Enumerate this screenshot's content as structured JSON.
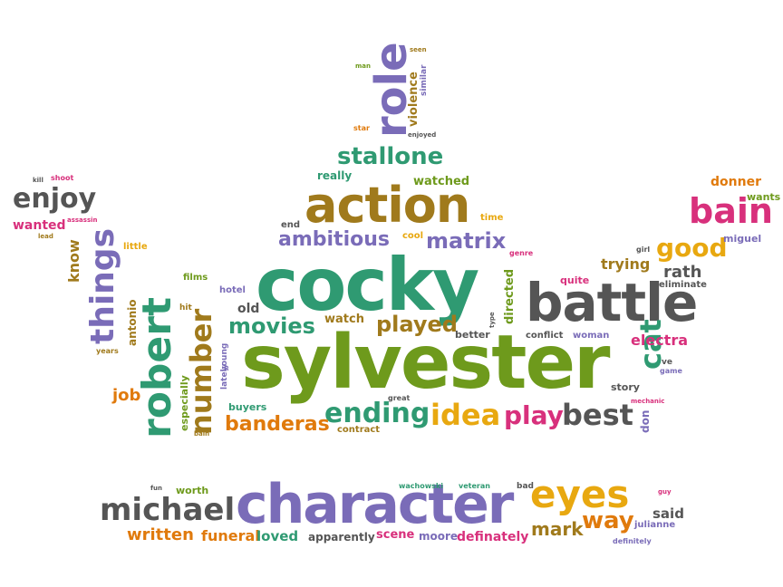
{
  "palette": {
    "purple": "#7a6cb8",
    "green": "#2f9a72",
    "olive": "#6e9a1c",
    "brown": "#a07a1c",
    "gray": "#555555",
    "magenta": "#d8307c",
    "orange": "#e07a0c",
    "yellow": "#e8a810"
  },
  "words": {
    "sylvester": "sylvester",
    "cocky": "cocky",
    "character": "character",
    "action": "action",
    "battle": "battle",
    "robert": "robert",
    "role": "role",
    "michael": "michael",
    "eyes": "eyes",
    "stallone": "stallone",
    "bain": "bain",
    "things": "things",
    "number": "number",
    "ending": "ending",
    "idea": "idea",
    "best": "best",
    "play": "play",
    "banderas": "banderas",
    "good": "good",
    "enjoy": "enjoy",
    "movies": "movies",
    "played": "played",
    "ambitious": "ambitious",
    "matrix": "matrix",
    "cat": "cat",
    "way": "way",
    "mark": "mark",
    "written": "written",
    "funeral": "funeral",
    "loved": "loved",
    "definately": "definately",
    "scene": "scene",
    "moore": "moore",
    "apparently": "apparently",
    "said": "said",
    "julianne": "julianne",
    "definitely": "definitely",
    "rath": "rath",
    "trying": "trying",
    "electra": "electra",
    "donner": "donner",
    "wants": "wants",
    "miguel": "miguel",
    "eliminate": "eliminate",
    "quite": "quite",
    "girl": "girl",
    "conflict": "conflict",
    "woman": "woman",
    "story": "story",
    "game": "game",
    "ve": "ve",
    "don": "don",
    "mechanic": "mechanic",
    "directed": "directed",
    "type": "type",
    "better": "better",
    "genre": "genre",
    "watch": "watch",
    "old": "old",
    "hotel": "hotel",
    "films": "films",
    "hit": "hit",
    "job": "job",
    "especially": "especially",
    "lately": "lately",
    "young": "young",
    "buyers": "buyers",
    "contract": "contract",
    "great": "great",
    "bain_small": "bain",
    "years": "years",
    "antonio": "antonio",
    "know": "know",
    "little": "little",
    "wanted": "wanted",
    "assassin": "assassin",
    "lead": "lead",
    "kill": "kill",
    "shoot": "shoot",
    "really": "really",
    "watched": "watched",
    "end": "end",
    "cool": "cool",
    "time": "time",
    "star": "star",
    "enjoyed": "enjoyed",
    "violence": "violence",
    "similar": "similar",
    "seen": "seen",
    "man": "man",
    "worth": "worth",
    "fun": "fun",
    "wachowski": "wachowski",
    "veteran": "veteran",
    "bad": "bad",
    "guy": "guy"
  }
}
